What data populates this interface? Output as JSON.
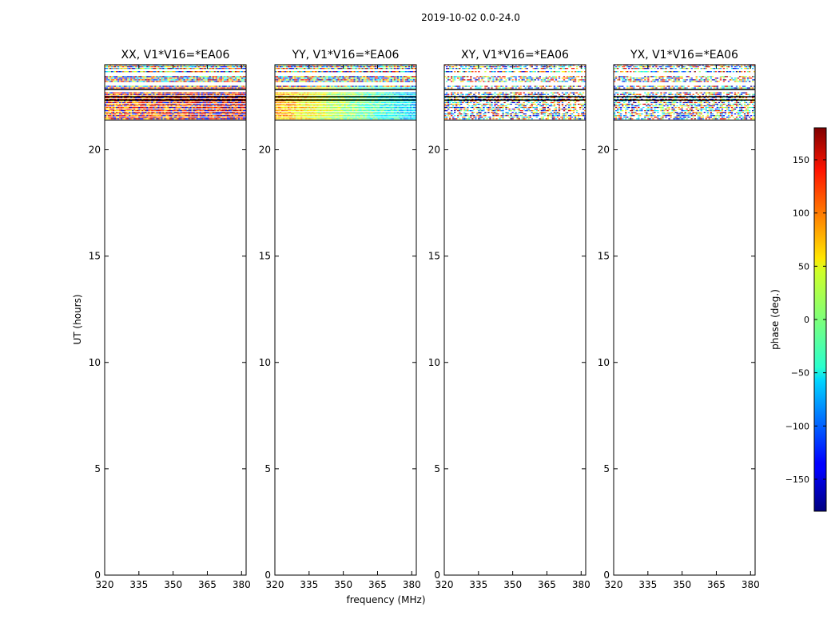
{
  "figure_title": "2019-10-02 0.0-24.0",
  "chart_data": {
    "type": "heatmap",
    "shared": {
      "xlabel": "frequency (MHz)",
      "ylabel": "UT (hours)",
      "xlim": [
        320,
        382
      ],
      "ylim": [
        0,
        24
      ],
      "xticks": [
        320,
        335,
        350,
        365,
        380
      ],
      "yticks": [
        0,
        5,
        10,
        15,
        20
      ],
      "data_ut_range": [
        21.4,
        24.0
      ]
    },
    "panels": [
      {
        "title": "XX, V1*V16=*EA06",
        "pattern": "xx"
      },
      {
        "title": "YY, V1*V16=*EA06",
        "pattern": "yy"
      },
      {
        "title": "XY, V1*V16=*EA06",
        "pattern": "noise"
      },
      {
        "title": "YX, V1*V16=*EA06",
        "pattern": "noise"
      }
    ],
    "colorbar": {
      "label": "phase (deg.)",
      "range": [
        -180,
        180
      ],
      "ticks": [
        -150,
        -100,
        -50,
        0,
        50,
        100,
        150
      ],
      "colormap": "jet"
    }
  }
}
